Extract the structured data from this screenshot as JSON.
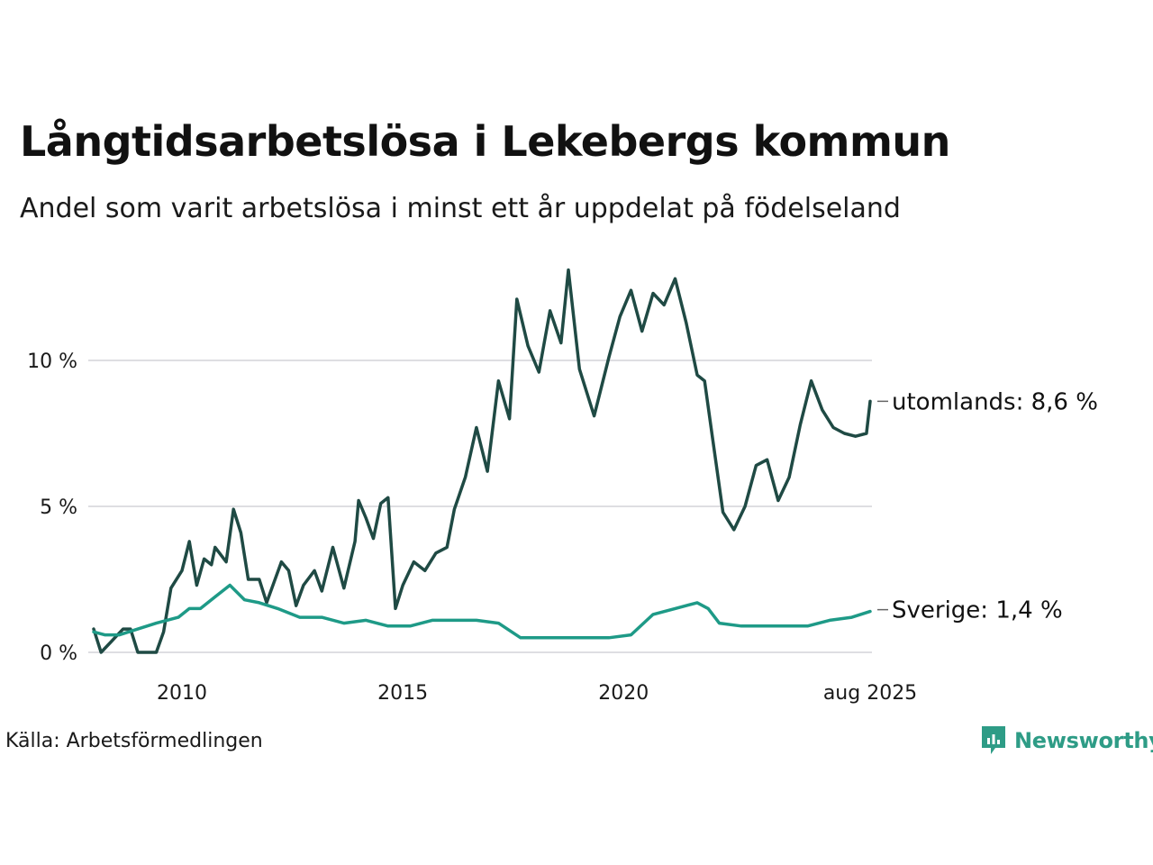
{
  "title": "Långtidsarbetslösa i Lekebergs kommun",
  "subtitle": "Andel som varit arbetslösa i minst ett år uppdelat på födelseland",
  "source": "Källa: Arbetsförmedlingen",
  "logo_text": "Newsworthy",
  "colors": {
    "utomlands": "#1f4a44",
    "sverige": "#1e9a87",
    "grid": "#dedee2",
    "logo": "#2e9c86"
  },
  "chart_data": {
    "type": "line",
    "x_range": [
      "2008-01",
      "2025-08"
    ],
    "ylim": [
      0,
      13.5
    ],
    "y_ticks": [
      0,
      5,
      10
    ],
    "y_tick_labels": [
      "0 %",
      "5 %",
      "10 %"
    ],
    "x_ticks": [
      "2010-01",
      "2015-01",
      "2020-01",
      "2025-08"
    ],
    "x_tick_labels": [
      "2010",
      "2015",
      "2020",
      "aug 2025"
    ],
    "grid": true,
    "series": [
      {
        "name": "utomlands",
        "end_label": "utomlands: 8,6 %",
        "points": [
          [
            "2008-01",
            0.8
          ],
          [
            "2008-03",
            0.0
          ],
          [
            "2008-09",
            0.8
          ],
          [
            "2008-11",
            0.8
          ],
          [
            "2009-01",
            0.0
          ],
          [
            "2009-06",
            0.0
          ],
          [
            "2009-08",
            0.7
          ],
          [
            "2009-10",
            2.2
          ],
          [
            "2010-01",
            2.8
          ],
          [
            "2010-03",
            3.8
          ],
          [
            "2010-05",
            2.3
          ],
          [
            "2010-07",
            3.2
          ],
          [
            "2010-09",
            3.0
          ],
          [
            "2010-10",
            3.6
          ],
          [
            "2011-01",
            3.1
          ],
          [
            "2011-03",
            4.9
          ],
          [
            "2011-05",
            4.1
          ],
          [
            "2011-07",
            2.5
          ],
          [
            "2011-10",
            2.5
          ],
          [
            "2011-12",
            1.7
          ],
          [
            "2012-02",
            2.4
          ],
          [
            "2012-04",
            3.1
          ],
          [
            "2012-06",
            2.8
          ],
          [
            "2012-08",
            1.6
          ],
          [
            "2012-10",
            2.3
          ],
          [
            "2013-01",
            2.8
          ],
          [
            "2013-03",
            2.1
          ],
          [
            "2013-06",
            3.6
          ],
          [
            "2013-09",
            2.2
          ],
          [
            "2013-12",
            3.8
          ],
          [
            "2014-01",
            5.2
          ],
          [
            "2014-03",
            4.6
          ],
          [
            "2014-05",
            3.9
          ],
          [
            "2014-07",
            5.1
          ],
          [
            "2014-09",
            5.3
          ],
          [
            "2014-11",
            1.5
          ],
          [
            "2015-01",
            2.3
          ],
          [
            "2015-04",
            3.1
          ],
          [
            "2015-07",
            2.8
          ],
          [
            "2015-10",
            3.4
          ],
          [
            "2016-01",
            3.6
          ],
          [
            "2016-03",
            4.9
          ],
          [
            "2016-06",
            6.0
          ],
          [
            "2016-09",
            7.7
          ],
          [
            "2016-12",
            6.2
          ],
          [
            "2017-03",
            9.3
          ],
          [
            "2017-06",
            8.0
          ],
          [
            "2017-08",
            12.1
          ],
          [
            "2017-11",
            10.5
          ],
          [
            "2018-02",
            9.6
          ],
          [
            "2018-05",
            11.7
          ],
          [
            "2018-08",
            10.6
          ],
          [
            "2018-10",
            13.1
          ],
          [
            "2019-01",
            9.7
          ],
          [
            "2019-05",
            8.1
          ],
          [
            "2019-09",
            10.1
          ],
          [
            "2019-12",
            11.5
          ],
          [
            "2020-03",
            12.4
          ],
          [
            "2020-06",
            11.0
          ],
          [
            "2020-09",
            12.3
          ],
          [
            "2020-12",
            11.9
          ],
          [
            "2021-03",
            12.8
          ],
          [
            "2021-06",
            11.3
          ],
          [
            "2021-09",
            9.5
          ],
          [
            "2021-11",
            9.3
          ],
          [
            "2022-01",
            7.5
          ],
          [
            "2022-04",
            4.8
          ],
          [
            "2022-07",
            4.2
          ],
          [
            "2022-10",
            5.0
          ],
          [
            "2023-01",
            6.4
          ],
          [
            "2023-04",
            6.6
          ],
          [
            "2023-07",
            5.2
          ],
          [
            "2023-10",
            6.0
          ],
          [
            "2024-01",
            7.8
          ],
          [
            "2024-04",
            9.3
          ],
          [
            "2024-07",
            8.3
          ],
          [
            "2024-10",
            7.7
          ],
          [
            "2025-01",
            7.5
          ],
          [
            "2025-04",
            7.4
          ],
          [
            "2025-07",
            7.5
          ],
          [
            "2025-08",
            8.6
          ]
        ]
      },
      {
        "name": "Sverige",
        "end_label": "Sverige: 1,4 %",
        "points": [
          [
            "2008-01",
            0.7
          ],
          [
            "2008-04",
            0.6
          ],
          [
            "2008-08",
            0.6
          ],
          [
            "2009-01",
            0.8
          ],
          [
            "2009-06",
            1.0
          ],
          [
            "2009-12",
            1.2
          ],
          [
            "2010-03",
            1.5
          ],
          [
            "2010-06",
            1.5
          ],
          [
            "2010-10",
            1.9
          ],
          [
            "2011-02",
            2.3
          ],
          [
            "2011-06",
            1.8
          ],
          [
            "2011-10",
            1.7
          ],
          [
            "2012-03",
            1.5
          ],
          [
            "2012-09",
            1.2
          ],
          [
            "2013-03",
            1.2
          ],
          [
            "2013-09",
            1.0
          ],
          [
            "2014-03",
            1.1
          ],
          [
            "2014-09",
            0.9
          ],
          [
            "2015-03",
            0.9
          ],
          [
            "2015-09",
            1.1
          ],
          [
            "2016-03",
            1.1
          ],
          [
            "2016-09",
            1.1
          ],
          [
            "2017-03",
            1.0
          ],
          [
            "2017-09",
            0.5
          ],
          [
            "2018-03",
            0.5
          ],
          [
            "2018-09",
            0.5
          ],
          [
            "2019-03",
            0.5
          ],
          [
            "2019-09",
            0.5
          ],
          [
            "2020-03",
            0.6
          ],
          [
            "2020-09",
            1.3
          ],
          [
            "2021-03",
            1.5
          ],
          [
            "2021-09",
            1.7
          ],
          [
            "2021-12",
            1.5
          ],
          [
            "2022-03",
            1.0
          ],
          [
            "2022-09",
            0.9
          ],
          [
            "2023-03",
            0.9
          ],
          [
            "2023-09",
            0.9
          ],
          [
            "2024-03",
            0.9
          ],
          [
            "2024-09",
            1.1
          ],
          [
            "2025-03",
            1.2
          ],
          [
            "2025-08",
            1.4
          ]
        ]
      }
    ]
  }
}
